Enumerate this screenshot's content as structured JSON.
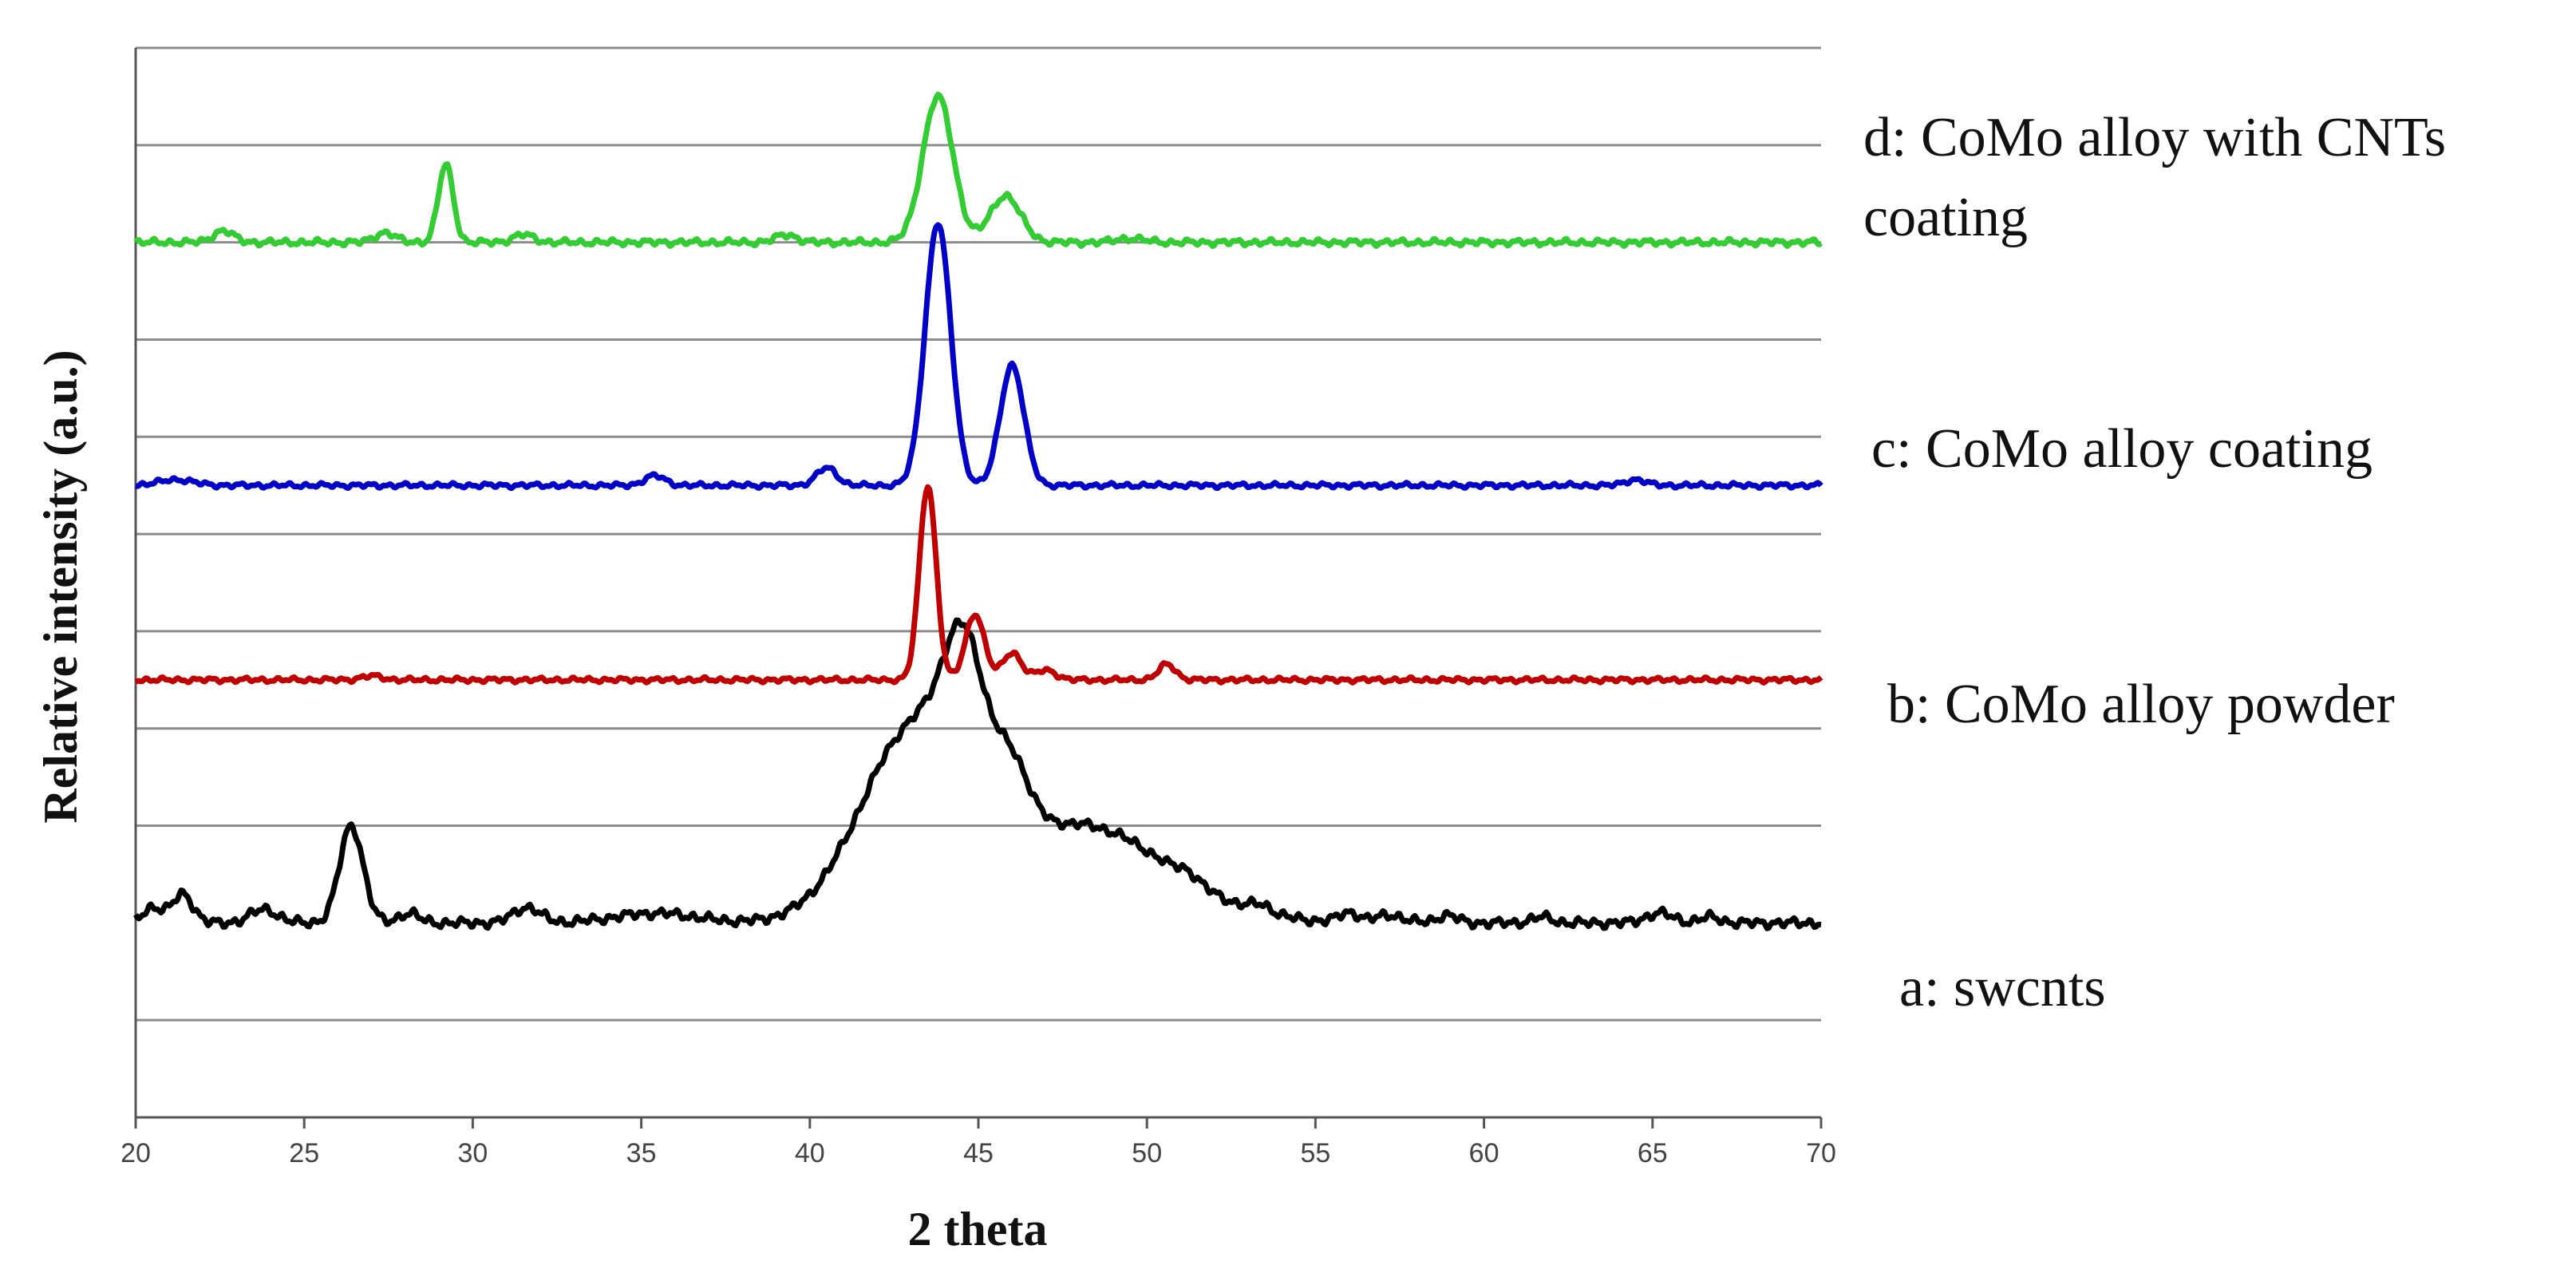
{
  "chart_data": {
    "type": "line",
    "title": "",
    "xlabel": "2 theta",
    "ylabel": "Relative intensity (a.u.)",
    "xlim": [
      20,
      70
    ],
    "x_ticks": [
      "20",
      "25",
      "30",
      "35",
      "40",
      "45",
      "50",
      "55",
      "60",
      "65",
      "70"
    ],
    "grid": "horizontal",
    "y_ticks_shown": false,
    "series": [
      {
        "key": "a",
        "name": "a: swcnts",
        "color": "#000000",
        "baseline": 0,
        "noise_amp": 0.03,
        "peaks": [
          [
            20.5,
            0.08,
            0.3
          ],
          [
            21.4,
            0.15,
            0.3
          ],
          [
            23.8,
            0.07,
            0.4
          ],
          [
            26.4,
            0.5,
            0.35
          ],
          [
            28.1,
            0.05,
            0.3
          ],
          [
            31.6,
            0.08,
            0.4
          ],
          [
            35.4,
            0.05,
            1.2
          ],
          [
            43.1,
            0.95,
            1.6
          ],
          [
            44.6,
            0.7,
            0.6
          ],
          [
            46.0,
            0.3,
            0.5
          ],
          [
            48.0,
            0.5,
            2.6
          ],
          [
            51.2,
            0.04,
            0.3
          ],
          [
            53.4,
            0.04,
            0.3
          ],
          [
            56.0,
            0.05,
            0.3
          ],
          [
            57.2,
            0.04,
            0.4
          ],
          [
            58.9,
            0.04,
            0.3
          ],
          [
            61.7,
            0.03,
            0.3
          ],
          [
            65.2,
            0.05,
            0.4
          ],
          [
            66.7,
            0.03,
            0.3
          ]
        ]
      },
      {
        "key": "b",
        "name": "b: CoMo alloy powder",
        "color": "#C00000",
        "baseline": 1.25,
        "noise_amp": 0.015,
        "peaks": [
          [
            43.5,
            1.0,
            0.25
          ],
          [
            44.9,
            0.34,
            0.28
          ],
          [
            46.0,
            0.14,
            0.28
          ],
          [
            47.0,
            0.05,
            0.3
          ],
          [
            50.6,
            0.08,
            0.25
          ],
          [
            27.0,
            0.02,
            0.3
          ]
        ]
      },
      {
        "key": "c",
        "name": "c: CoMo alloy coating",
        "color": "#0000C8",
        "baseline": 2.25,
        "noise_amp": 0.015,
        "peaks": [
          [
            43.8,
            1.35,
            0.38
          ],
          [
            46.0,
            0.62,
            0.35
          ],
          [
            40.5,
            0.09,
            0.3
          ],
          [
            35.4,
            0.05,
            0.3
          ],
          [
            21.2,
            0.03,
            0.5
          ],
          [
            64.5,
            0.03,
            0.3
          ]
        ]
      },
      {
        "key": "d",
        "name": "d: CoMo alloy with CNTs coating",
        "name_lines": [
          "d: CoMo alloy with CNTs",
          "coating"
        ],
        "color": "#33CC33",
        "baseline": 3.5,
        "noise_amp": 0.02,
        "peaks": [
          [
            43.8,
            0.75,
            0.45
          ],
          [
            45.8,
            0.24,
            0.45
          ],
          [
            29.2,
            0.4,
            0.22
          ],
          [
            22.6,
            0.06,
            0.3
          ],
          [
            27.4,
            0.05,
            0.3
          ],
          [
            31.5,
            0.04,
            0.3
          ],
          [
            39.3,
            0.04,
            0.3
          ],
          [
            49.5,
            0.02,
            0.4
          ]
        ]
      }
    ],
    "gridline_y_units": [
      -0.5,
      0.5,
      1.0,
      1.5,
      2.0,
      2.5,
      3.0,
      3.5,
      4.0,
      4.5
    ]
  }
}
